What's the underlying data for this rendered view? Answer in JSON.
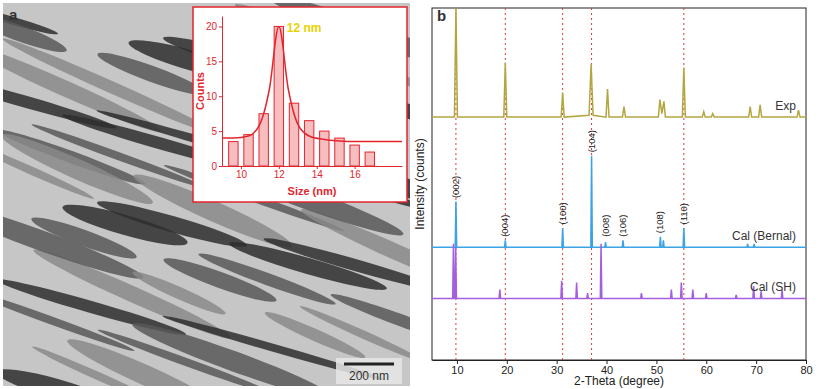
{
  "chart_data": [
    {
      "type": "bar",
      "panel_label": "a",
      "annotation": "12 nm",
      "scale_bar": "200 nm",
      "x_label": "Size (nm)",
      "y_label": "Counts",
      "xlim": [
        9,
        18.5
      ],
      "ylim": [
        0,
        21.5
      ],
      "xticks": [
        10,
        12,
        14,
        16
      ],
      "yticks": [
        0,
        5,
        10,
        15,
        20
      ],
      "series": [
        {
          "type": "bar",
          "color": "#e3262e",
          "x": [
            9.6,
            10.4,
            11.2,
            12,
            12.8,
            13.6,
            14.4,
            15.2,
            16,
            16.8
          ],
          "values": [
            3.5,
            4.5,
            7.5,
            20,
            9,
            6.5,
            5,
            4,
            3,
            2
          ]
        },
        {
          "type": "line",
          "color": "#e3262e",
          "x": [
            9,
            9.6,
            10.4,
            11,
            11.5,
            12,
            12.5,
            13,
            13.6,
            14.4,
            15.2,
            16,
            16.8,
            17.6,
            18.5
          ],
          "values": [
            4,
            4,
            4.3,
            6,
            11,
            20,
            11,
            6,
            4.3,
            3.8,
            3.6,
            3.5,
            3.5,
            3.5,
            3.5
          ]
        }
      ]
    },
    {
      "type": "line",
      "panel_label": "b",
      "x_label": "2-Theta (degree)",
      "y_label": "Intensity (counts)",
      "xlim": [
        5,
        80
      ],
      "ylim": [
        0,
        100
      ],
      "xticks": [
        10,
        20,
        30,
        40,
        50,
        60,
        70,
        80
      ],
      "tick_labels": "x",
      "reference_lines": [
        9.8,
        19.7,
        31.2,
        37.0,
        55.5
      ],
      "peak_labels": [
        {
          "label": "(002)",
          "x": 9.8,
          "y": 46
        },
        {
          "label": "(004)",
          "x": 19.7,
          "y": 35
        },
        {
          "label": "(100)",
          "x": 31.2,
          "y": 38.5
        },
        {
          "label": "(104)",
          "x": 37.0,
          "y": 59
        },
        {
          "label": "(008)",
          "x": 39.8,
          "y": 35
        },
        {
          "label": "(106)",
          "x": 43.3,
          "y": 35
        },
        {
          "label": "(108)",
          "x": 50.8,
          "y": 36
        },
        {
          "label": "(110)",
          "x": 55.5,
          "y": 38.5
        }
      ],
      "series": [
        {
          "name": "Exp",
          "color": "#b3a640",
          "x": [
            5,
            9.5,
            9.8,
            10.1,
            19.4,
            19.7,
            20.0,
            30.9,
            31.2,
            31.5,
            36.5,
            36.9,
            37.3,
            39.9,
            40.2,
            40.5,
            43.2,
            43.5,
            43.8,
            50.4,
            50.7,
            51.1,
            51.5,
            51.8,
            55.2,
            55.5,
            55.8,
            59.2,
            59.5,
            59.8,
            61.0,
            61.3,
            61.6,
            68.5,
            68.8,
            69.1,
            70.5,
            70.8,
            71.1,
            78.2,
            78.5,
            78.8,
            80
          ],
          "values": [
            69,
            69,
            100,
            69,
            69,
            84.5,
            69,
            69,
            76,
            69,
            69.5,
            84,
            69.5,
            69,
            77,
            69,
            69,
            72,
            69,
            69,
            74,
            70,
            73.5,
            69,
            69,
            83,
            69,
            69,
            70.5,
            69,
            69,
            70,
            69,
            69,
            72,
            69,
            69,
            72.5,
            69,
            69,
            71,
            69,
            69
          ]
        },
        {
          "name": "Cal (Bernal)",
          "color": "#3ba3e6",
          "x": [
            5,
            9.65,
            9.8,
            9.95,
            19.55,
            19.7,
            19.85,
            31.05,
            31.2,
            31.35,
            36.85,
            37.0,
            37.15,
            39.65,
            39.8,
            39.95,
            43.15,
            43.3,
            43.45,
            50.65,
            50.8,
            50.95,
            51.25,
            51.4,
            51.55,
            55.35,
            55.5,
            55.65,
            68.15,
            68.3,
            68.45,
            69.45,
            69.6,
            69.75,
            80
          ],
          "values": [
            32,
            32,
            45,
            32,
            32,
            34,
            32,
            32,
            37.5,
            32,
            32,
            58,
            32,
            32,
            33.5,
            32,
            32,
            34,
            32,
            32,
            35,
            32,
            32,
            34,
            32,
            32,
            37.5,
            32,
            32,
            33,
            32,
            32,
            33,
            32,
            32
          ]
        },
        {
          "name": "Cal (SH)",
          "color": "#a35fe0",
          "x": [
            5,
            9.15,
            9.3,
            9.45,
            9.6,
            9.75,
            9.9,
            18.45,
            18.6,
            18.75,
            30.85,
            31.0,
            31.15,
            33.85,
            34.0,
            34.15,
            36.05,
            36.2,
            36.35,
            38.75,
            38.9,
            39.05,
            46.85,
            47.0,
            47.15,
            52.85,
            53.0,
            53.15,
            54.85,
            55.0,
            55.15,
            57.15,
            57.3,
            57.45,
            59.85,
            60.0,
            60.15,
            65.85,
            66.0,
            66.15,
            69.35,
            69.5,
            69.65,
            70.85,
            71.0,
            71.15,
            75.05,
            75.2,
            75.35,
            80
          ],
          "values": [
            17.5,
            17.5,
            33,
            17.5,
            17.5,
            32,
            17.5,
            17.5,
            20,
            17.5,
            17.5,
            22.5,
            17.5,
            17.5,
            22,
            17.5,
            17.5,
            19,
            17.5,
            17.5,
            33,
            17.5,
            17.5,
            19,
            17.5,
            17.5,
            20,
            17.5,
            17.5,
            22,
            17.5,
            17.5,
            20,
            17.5,
            17.5,
            19,
            17.5,
            17.5,
            18.5,
            17.5,
            17.5,
            21,
            17.5,
            17.5,
            19.5,
            17.5,
            17.5,
            20,
            17.5,
            17.5
          ]
        }
      ]
    }
  ]
}
